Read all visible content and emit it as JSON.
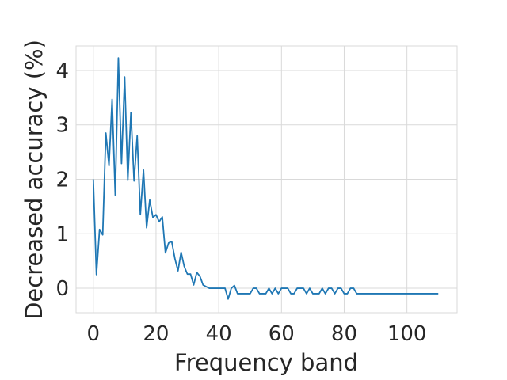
{
  "colors": {
    "line": "#1f77b4",
    "grid": "#d9d9d9",
    "frame": "#d9d9d9",
    "text": "#262626"
  },
  "chart_data": {
    "type": "line",
    "title": "",
    "xlabel": "Frequency band",
    "ylabel": "Decreased accuracy (%)",
    "xlim": [
      -5.5,
      116
    ],
    "ylim": [
      -0.45,
      4.45
    ],
    "xticks": [
      0,
      20,
      40,
      60,
      80,
      100
    ],
    "yticks": [
      0,
      1,
      2,
      3,
      4
    ],
    "xtick_labels": [
      "0",
      "20",
      "40",
      "60",
      "80",
      "100"
    ],
    "ytick_labels": [
      "0",
      "1",
      "2",
      "3",
      "4"
    ],
    "grid": true,
    "legend": "none",
    "series": [
      {
        "x": [
          0,
          1,
          2,
          3,
          4,
          5,
          6,
          7,
          8,
          9,
          10,
          11,
          12,
          13,
          14,
          15,
          16,
          17,
          18,
          19,
          20,
          21,
          22,
          23,
          24,
          25,
          26,
          27,
          28,
          29,
          30,
          31,
          32,
          33,
          34,
          35,
          36,
          37,
          38,
          39,
          40,
          41,
          42,
          43,
          44,
          45,
          46,
          47,
          48,
          49,
          50,
          51,
          52,
          53,
          54,
          55,
          56,
          57,
          58,
          59,
          60,
          61,
          62,
          63,
          64,
          65,
          66,
          67,
          68,
          69,
          70,
          71,
          72,
          73,
          74,
          75,
          76,
          77,
          78,
          79,
          80,
          81,
          82,
          83,
          84,
          85,
          86,
          87,
          88,
          89,
          90,
          91,
          92,
          93,
          94,
          95,
          96,
          97,
          98,
          99,
          100,
          101,
          102,
          103,
          104,
          105,
          106,
          107,
          108,
          109,
          110
        ],
        "y": [
          2.0,
          0.25,
          1.08,
          0.98,
          2.85,
          2.25,
          3.47,
          1.71,
          4.23,
          2.29,
          3.88,
          1.98,
          3.23,
          1.97,
          2.8,
          1.35,
          2.17,
          1.11,
          1.62,
          1.3,
          1.35,
          1.22,
          1.31,
          0.65,
          0.83,
          0.86,
          0.55,
          0.32,
          0.66,
          0.4,
          0.26,
          0.26,
          0.06,
          0.29,
          0.22,
          0.06,
          0.03,
          0.0,
          0.0,
          0.0,
          0.0,
          0.0,
          0.0,
          -0.2,
          0.0,
          0.05,
          -0.1,
          -0.1,
          -0.1,
          -0.1,
          -0.1,
          0.0,
          0.0,
          -0.1,
          -0.1,
          -0.1,
          0.0,
          -0.1,
          0.0,
          -0.1,
          0.0,
          0.0,
          0.0,
          -0.1,
          -0.1,
          0.0,
          0.0,
          0.0,
          -0.1,
          0.0,
          -0.1,
          -0.1,
          -0.1,
          0.0,
          -0.1,
          0.0,
          0.0,
          -0.1,
          0.0,
          0.0,
          -0.1,
          -0.1,
          0.0,
          0.0,
          -0.1,
          -0.1,
          -0.1,
          -0.1,
          -0.1,
          -0.1,
          -0.1,
          -0.1,
          -0.1,
          -0.1,
          -0.1,
          -0.1,
          -0.1,
          -0.1,
          -0.1,
          -0.1,
          -0.1,
          -0.1,
          -0.1,
          -0.1,
          -0.1,
          -0.1,
          -0.1,
          -0.1,
          -0.1,
          -0.1,
          -0.1
        ]
      }
    ]
  }
}
